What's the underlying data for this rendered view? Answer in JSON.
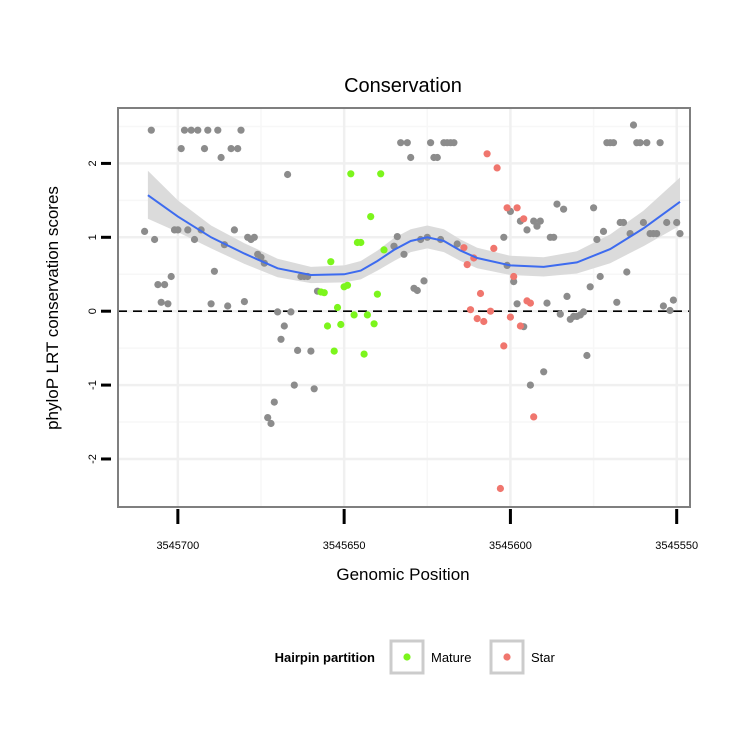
{
  "chart_data": {
    "type": "scatter",
    "title": "Conservation",
    "xlabel": "Genomic Position",
    "ylabel": "phyloP LRT conservation scores",
    "x_reversed": true,
    "xlim": [
      3545718,
      3545546
    ],
    "ylim": [
      -2.65,
      2.75
    ],
    "x_ticks": [
      3545700,
      3545650,
      3545600,
      3545550
    ],
    "x_tick_labels": [
      "3545700",
      "3545650",
      "3545600",
      "3545550"
    ],
    "y_ticks": [
      -2,
      -1,
      0,
      1,
      2
    ],
    "y_tick_labels": [
      "-2",
      "-1",
      "0",
      "1",
      "2"
    ],
    "grid": true,
    "reference_line": {
      "y": 0,
      "style": "dashed"
    },
    "legend": {
      "title": "Hairpin partition",
      "position": "bottom",
      "items": [
        {
          "label": "Mature",
          "color": "#7cf51c"
        },
        {
          "label": "Star",
          "color": "#f0766e"
        }
      ]
    },
    "colors": {
      "background_points": "#8c8c8c",
      "mature": "#7cf51c",
      "star": "#f0766e",
      "smooth_line": "#3d6bef",
      "ribbon": "#d9d9d9"
    },
    "series": [
      {
        "name": "",
        "color": "#8c8c8c",
        "points": [
          [
            3545710,
            1.08
          ],
          [
            3545708,
            2.45
          ],
          [
            3545707,
            0.97
          ],
          [
            3545706,
            0.36
          ],
          [
            3545705,
            0.12
          ],
          [
            3545704,
            0.36
          ],
          [
            3545703,
            0.1
          ],
          [
            3545702,
            0.47
          ],
          [
            3545701,
            1.1
          ],
          [
            3545700,
            1.1
          ],
          [
            3545699,
            2.2
          ],
          [
            3545698,
            2.45
          ],
          [
            3545697,
            1.1
          ],
          [
            3545696,
            2.45
          ],
          [
            3545695,
            0.97
          ],
          [
            3545694,
            2.45
          ],
          [
            3545693,
            1.1
          ],
          [
            3545692,
            2.2
          ],
          [
            3545691,
            2.45
          ],
          [
            3545690,
            0.1
          ],
          [
            3545689,
            0.54
          ],
          [
            3545688,
            2.45
          ],
          [
            3545687,
            2.08
          ],
          [
            3545686,
            0.9
          ],
          [
            3545685,
            0.07
          ],
          [
            3545684,
            2.2
          ],
          [
            3545683,
            1.1
          ],
          [
            3545682,
            2.2
          ],
          [
            3545681,
            2.45
          ],
          [
            3545680,
            0.13
          ],
          [
            3545679,
            1.0
          ],
          [
            3545678,
            0.97
          ],
          [
            3545677,
            1.0
          ],
          [
            3545676,
            0.77
          ],
          [
            3545675,
            0.73
          ],
          [
            3545674,
            0.65
          ],
          [
            3545673,
            -1.44
          ],
          [
            3545672,
            -1.52
          ],
          [
            3545671,
            -1.23
          ],
          [
            3545670,
            -0.01
          ],
          [
            3545669,
            -0.38
          ],
          [
            3545668,
            -0.2
          ],
          [
            3545667,
            1.85
          ],
          [
            3545666,
            -0.01
          ],
          [
            3545665,
            -1.0
          ],
          [
            3545664,
            -0.53
          ],
          [
            3545663,
            0.47
          ],
          [
            3545662,
            0.47
          ],
          [
            3545661,
            0.47
          ],
          [
            3545660,
            -0.54
          ],
          [
            3545659,
            -1.05
          ],
          [
            3545658,
            0.27
          ],
          [
            3545635,
            0.88
          ],
          [
            3545634,
            1.01
          ],
          [
            3545633,
            2.28
          ],
          [
            3545632,
            0.77
          ],
          [
            3545631,
            2.28
          ],
          [
            3545630,
            2.08
          ],
          [
            3545629,
            0.31
          ],
          [
            3545628,
            0.28
          ],
          [
            3545627,
            0.97
          ],
          [
            3545626,
            0.41
          ],
          [
            3545625,
            1.0
          ],
          [
            3545624,
            2.28
          ],
          [
            3545623,
            2.08
          ],
          [
            3545622,
            2.08
          ],
          [
            3545621,
            0.97
          ],
          [
            3545620,
            2.28
          ],
          [
            3545619,
            2.28
          ],
          [
            3545618,
            2.28
          ],
          [
            3545617,
            2.28
          ],
          [
            3545616,
            0.91
          ],
          [
            3545602,
            1.0
          ],
          [
            3545601,
            0.62
          ],
          [
            3545600,
            1.35
          ],
          [
            3545599,
            0.4
          ],
          [
            3545598,
            0.1
          ],
          [
            3545597,
            1.22
          ],
          [
            3545596,
            -0.21
          ],
          [
            3545595,
            1.1
          ],
          [
            3545594,
            -1.0
          ],
          [
            3545593,
            1.22
          ],
          [
            3545592,
            1.15
          ],
          [
            3545591,
            1.22
          ],
          [
            3545590,
            -0.82
          ],
          [
            3545589,
            0.11
          ],
          [
            3545588,
            1.0
          ],
          [
            3545587,
            1.0
          ],
          [
            3545586,
            1.45
          ],
          [
            3545585,
            -0.04
          ],
          [
            3545584,
            1.38
          ],
          [
            3545583,
            0.2
          ],
          [
            3545582,
            -0.11
          ],
          [
            3545581,
            -0.07
          ],
          [
            3545580,
            -0.07
          ],
          [
            3545579,
            -0.05
          ],
          [
            3545578,
            -0.01
          ],
          [
            3545577,
            -0.6
          ],
          [
            3545576,
            0.33
          ],
          [
            3545575,
            1.4
          ],
          [
            3545574,
            0.97
          ],
          [
            3545573,
            0.47
          ],
          [
            3545572,
            1.08
          ],
          [
            3545571,
            2.28
          ],
          [
            3545570,
            2.28
          ],
          [
            3545569,
            2.28
          ],
          [
            3545568,
            0.12
          ],
          [
            3545567,
            1.2
          ],
          [
            3545566,
            1.2
          ],
          [
            3545565,
            0.53
          ],
          [
            3545564,
            1.05
          ],
          [
            3545563,
            2.52
          ],
          [
            3545562,
            2.28
          ],
          [
            3545561,
            2.28
          ],
          [
            3545560,
            1.2
          ],
          [
            3545559,
            2.28
          ],
          [
            3545558,
            1.05
          ],
          [
            3545557,
            1.05
          ],
          [
            3545556,
            1.05
          ],
          [
            3545555,
            2.28
          ],
          [
            3545554,
            0.07
          ],
          [
            3545553,
            1.2
          ],
          [
            3545552,
            0.01
          ],
          [
            3545551,
            0.15
          ],
          [
            3545550,
            1.2
          ],
          [
            3545549,
            1.05
          ]
        ]
      },
      {
        "name": "Mature",
        "color": "#7cf51c",
        "points": [
          [
            3545657,
            0.26
          ],
          [
            3545656,
            0.25
          ],
          [
            3545655,
            -0.2
          ],
          [
            3545654,
            0.67
          ],
          [
            3545653,
            -0.54
          ],
          [
            3545652,
            0.05
          ],
          [
            3545651,
            -0.18
          ],
          [
            3545650,
            0.33
          ],
          [
            3545649,
            0.35
          ],
          [
            3545648,
            1.86
          ],
          [
            3545647,
            -0.05
          ],
          [
            3545646,
            0.93
          ],
          [
            3545645,
            0.93
          ],
          [
            3545644,
            -0.58
          ],
          [
            3545643,
            -0.05
          ],
          [
            3545642,
            1.28
          ],
          [
            3545641,
            -0.17
          ],
          [
            3545640,
            0.23
          ],
          [
            3545639,
            1.86
          ],
          [
            3545638,
            0.83
          ]
        ]
      },
      {
        "name": "Star",
        "color": "#f0766e",
        "points": [
          [
            3545614,
            0.86
          ],
          [
            3545613,
            0.63
          ],
          [
            3545612,
            0.02
          ],
          [
            3545611,
            0.72
          ],
          [
            3545610,
            -0.1
          ],
          [
            3545609,
            0.24
          ],
          [
            3545608,
            -0.14
          ],
          [
            3545607,
            2.13
          ],
          [
            3545606,
            0.0
          ],
          [
            3545605,
            0.85
          ],
          [
            3545604,
            1.94
          ],
          [
            3545603,
            -2.4
          ],
          [
            3545602,
            -0.47
          ],
          [
            3545601,
            1.4
          ],
          [
            3545600,
            -0.08
          ],
          [
            3545599,
            0.47
          ],
          [
            3545598,
            1.4
          ],
          [
            3545597,
            -0.2
          ],
          [
            3545596,
            1.25
          ],
          [
            3545595,
            0.14
          ],
          [
            3545594,
            0.11
          ],
          [
            3545593,
            -1.43
          ]
        ]
      }
    ],
    "smooth": {
      "x": [
        3545709,
        3545700,
        3545690,
        3545680,
        3545670,
        3545660,
        3545650,
        3545645,
        3545640,
        3545635,
        3545630,
        3545625,
        3545620,
        3545615,
        3545610,
        3545600,
        3545590,
        3545580,
        3545570,
        3545560,
        3545549
      ],
      "y": [
        1.57,
        1.28,
        1.0,
        0.78,
        0.58,
        0.49,
        0.5,
        0.55,
        0.68,
        0.83,
        0.95,
        1.0,
        0.95,
        0.82,
        0.72,
        0.62,
        0.6,
        0.66,
        0.84,
        1.12,
        1.48
      ],
      "lower": [
        1.25,
        1.07,
        0.85,
        0.64,
        0.46,
        0.38,
        0.39,
        0.43,
        0.55,
        0.68,
        0.8,
        0.85,
        0.8,
        0.68,
        0.58,
        0.49,
        0.47,
        0.51,
        0.65,
        0.88,
        1.16
      ],
      "upper": [
        1.9,
        1.5,
        1.16,
        0.92,
        0.71,
        0.6,
        0.62,
        0.68,
        0.82,
        0.99,
        1.11,
        1.16,
        1.11,
        0.97,
        0.86,
        0.75,
        0.73,
        0.81,
        1.04,
        1.36,
        1.81
      ]
    }
  }
}
